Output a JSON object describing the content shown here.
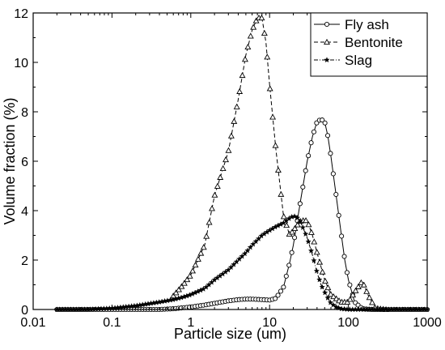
{
  "chart_data": {
    "type": "line",
    "xlabel": "Particle size (um)",
    "ylabel": "Volume fraction (%)",
    "x_scale": "log",
    "xlim": [
      0.01,
      1000
    ],
    "ylim": [
      0,
      12
    ],
    "x_ticks": [
      0.01,
      0.1,
      1,
      10,
      100,
      1000
    ],
    "x_tick_labels": [
      "0.01",
      "0.1",
      "1",
      "10",
      "100",
      "1000"
    ],
    "y_ticks": [
      0,
      2,
      4,
      6,
      8,
      10,
      12
    ],
    "y_tick_labels": [
      "0",
      "2",
      "4",
      "6",
      "8",
      "10",
      "12"
    ],
    "grid": false,
    "legend_position": "top-right",
    "series": [
      {
        "name": "Fly ash",
        "line_style": "solid",
        "marker": "circle",
        "color": "#000000",
        "x": [
          0.02,
          0.05,
          0.1,
          0.2,
          0.4,
          0.6,
          0.8,
          1,
          1.5,
          2,
          3,
          4,
          5,
          6,
          8,
          10,
          12,
          15,
          18,
          20,
          25,
          30,
          35,
          40,
          45,
          50,
          55,
          60,
          70,
          80,
          90,
          100,
          120,
          150,
          200,
          300,
          500,
          1000
        ],
        "y": [
          0,
          0,
          0,
          0,
          0,
          0.03,
          0.07,
          0.1,
          0.18,
          0.25,
          0.35,
          0.4,
          0.42,
          0.42,
          0.4,
          0.38,
          0.45,
          0.9,
          1.9,
          2.6,
          4.5,
          6.0,
          7.0,
          7.6,
          7.7,
          7.6,
          7.0,
          6.2,
          4.6,
          3.2,
          2.0,
          1.2,
          0.3,
          0.03,
          0,
          0,
          0,
          0
        ]
      },
      {
        "name": "Bentonite",
        "line_style": "dashed",
        "marker": "triangle",
        "color": "#000000",
        "x": [
          0.6,
          0.8,
          1,
          1.5,
          2,
          3,
          4,
          5,
          6,
          7,
          8,
          9,
          10,
          12,
          15,
          18,
          20,
          25,
          30,
          35,
          40,
          50,
          60,
          80,
          100,
          120,
          150,
          180,
          220,
          300
        ],
        "y": [
          0.55,
          1.0,
          1.4,
          2.6,
          4.6,
          6.4,
          8.5,
          10.3,
          11.3,
          11.8,
          11.8,
          10.8,
          9.1,
          6.5,
          3.8,
          3.0,
          3.2,
          3.6,
          3.6,
          3.0,
          2.3,
          1.2,
          0.6,
          0.3,
          0.3,
          0.7,
          1.15,
          0.55,
          0.05,
          0
        ]
      },
      {
        "name": "Slag",
        "line_style": "dash-dot",
        "marker": "star",
        "color": "#000000",
        "x": [
          0.02,
          0.05,
          0.1,
          0.2,
          0.4,
          0.6,
          0.8,
          1,
          1.5,
          2,
          3,
          4,
          5,
          6,
          8,
          10,
          12,
          15,
          18,
          20,
          22,
          25,
          30,
          35,
          40,
          45,
          50,
          55,
          60,
          70,
          80,
          100,
          150,
          200,
          300,
          500,
          1000
        ],
        "y": [
          0,
          0,
          0.05,
          0.15,
          0.3,
          0.4,
          0.5,
          0.6,
          0.85,
          1.2,
          1.6,
          2.0,
          2.3,
          2.6,
          3.0,
          3.2,
          3.35,
          3.5,
          3.7,
          3.78,
          3.75,
          3.5,
          2.9,
          2.2,
          1.5,
          1.0,
          0.7,
          0.45,
          0.25,
          0.1,
          0.03,
          0,
          0,
          0,
          0,
          0,
          0
        ]
      }
    ]
  }
}
